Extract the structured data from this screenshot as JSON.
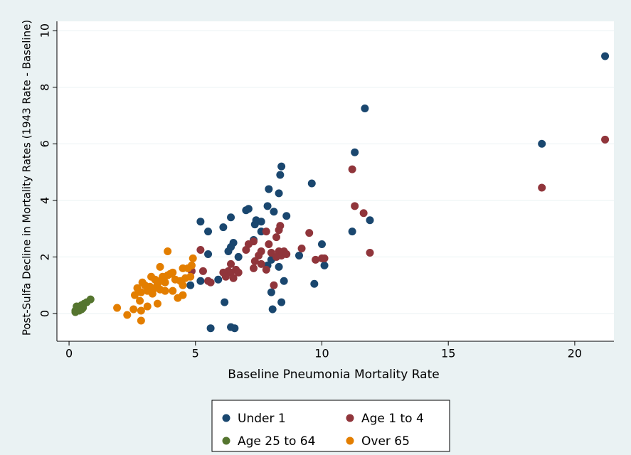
{
  "chart_data": {
    "type": "scatter",
    "x_label": "Baseline Pneumonia Mortality Rate",
    "y_label": "Post-Sulfa Decline in Mortality Rates (1943 Rate - Baseline)",
    "xlim": [
      -0.48,
      21.55
    ],
    "ylim": [
      -0.98,
      10.33
    ],
    "xticks": [
      0,
      5,
      10,
      15,
      20
    ],
    "yticks": [
      0,
      2,
      4,
      6,
      8,
      10
    ],
    "grid": true,
    "series": [
      {
        "name": "Under 1",
        "color": "#1a476f",
        "x": [
          21.2,
          18.7,
          11.7,
          11.3,
          11.2,
          11.9,
          9.6,
          10.0,
          10.1,
          9.7,
          9.1,
          8.6,
          8.4,
          8.35,
          8.3,
          7.9,
          8.1,
          7.85,
          7.6,
          7.4,
          7.1,
          7.0,
          7.35,
          7.6,
          7.3,
          6.4,
          5.2,
          5.5,
          6.1,
          6.5,
          6.3,
          6.4,
          5.5,
          6.7,
          5.9,
          5.2,
          4.8,
          6.15,
          8.4,
          8.5,
          8.0,
          8.05,
          8.3,
          8.0,
          6.4,
          6.55,
          5.6,
          7.85
        ],
        "values": [
          9.1,
          6.0,
          7.25,
          5.7,
          2.9,
          3.3,
          4.6,
          2.45,
          1.7,
          1.05,
          2.05,
          3.45,
          5.2,
          4.9,
          4.25,
          4.4,
          3.6,
          3.8,
          3.25,
          3.3,
          3.7,
          3.65,
          3.15,
          2.9,
          2.6,
          3.4,
          3.25,
          2.9,
          3.05,
          2.5,
          2.2,
          2.35,
          2.1,
          2.0,
          1.2,
          1.15,
          1.0,
          0.4,
          0.4,
          1.15,
          0.75,
          0.15,
          1.65,
          1.9,
          -0.48,
          -0.52,
          -0.52,
          1.7
        ]
      },
      {
        "name": "Age 1 to 4",
        "color": "#90353b",
        "x": [
          21.2,
          18.7,
          11.2,
          11.3,
          11.65,
          11.9,
          9.5,
          9.75,
          10.0,
          10.1,
          9.2,
          8.35,
          8.3,
          7.8,
          8.2,
          7.3,
          7.1,
          7.0,
          7.6,
          7.9,
          8.0,
          8.3,
          8.5,
          8.4,
          8.6,
          8.2,
          7.5,
          7.35,
          7.6,
          7.3,
          7.8,
          8.1,
          6.6,
          6.4,
          6.3,
          6.2,
          6.5,
          6.7,
          6.1,
          5.2,
          4.85,
          5.3,
          5.5,
          5.6,
          6.4
        ],
        "values": [
          6.15,
          4.45,
          5.1,
          3.8,
          3.55,
          2.15,
          2.85,
          1.9,
          1.95,
          1.95,
          2.3,
          3.1,
          2.95,
          2.9,
          2.7,
          2.55,
          2.45,
          2.25,
          2.2,
          2.45,
          2.15,
          2.2,
          2.2,
          2.05,
          2.1,
          2.0,
          2.05,
          1.85,
          1.75,
          1.6,
          1.55,
          1.0,
          1.55,
          1.45,
          1.5,
          1.3,
          1.25,
          1.45,
          1.45,
          2.25,
          1.5,
          1.5,
          1.15,
          1.1,
          1.75
        ]
      },
      {
        "name": "Age 25 to 64",
        "color": "#55752f",
        "x": [
          0.85,
          0.7,
          0.6,
          0.5,
          0.45,
          0.4,
          0.35,
          0.3,
          0.25,
          0.25,
          0.5,
          0.55,
          0.3,
          0.4
        ],
        "values": [
          0.5,
          0.4,
          0.35,
          0.3,
          0.25,
          0.2,
          0.2,
          0.15,
          0.1,
          0.05,
          0.15,
          0.2,
          0.25,
          0.1
        ]
      },
      {
        "name": "Over 65",
        "color": "#e37e00",
        "x": [
          3.9,
          4.9,
          4.85,
          4.7,
          4.5,
          3.6,
          4.1,
          4.0,
          3.9,
          3.7,
          3.25,
          3.4,
          3.6,
          3.8,
          4.2,
          4.4,
          4.6,
          4.8,
          3.0,
          3.2,
          3.4,
          3.6,
          3.8,
          4.1,
          4.5,
          4.3,
          2.9,
          2.7,
          2.85,
          3.1,
          2.6,
          2.8,
          3.5,
          3.1,
          2.55,
          2.85,
          1.9,
          2.3,
          2.85,
          4.5,
          3.5,
          3.3
        ],
        "values": [
          2.2,
          1.95,
          1.7,
          1.6,
          1.6,
          1.65,
          1.45,
          1.4,
          1.35,
          1.3,
          1.3,
          1.2,
          1.15,
          1.1,
          1.2,
          1.15,
          1.25,
          1.3,
          1.0,
          0.95,
          0.9,
          0.85,
          0.8,
          0.8,
          0.65,
          0.55,
          1.1,
          0.9,
          0.75,
          0.8,
          0.65,
          0.45,
          0.35,
          0.25,
          0.15,
          0.1,
          0.2,
          -0.05,
          -0.25,
          1.0,
          1.05,
          0.7
        ]
      }
    ]
  }
}
